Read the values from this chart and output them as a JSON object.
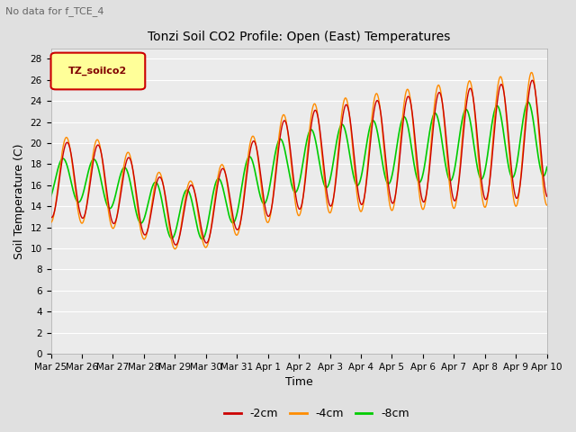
{
  "title": "Tonzi Soil CO2 Profile: Open (East) Temperatures",
  "subtitle": "No data for f_TCE_4",
  "xlabel": "Time",
  "ylabel": "Soil Temperature (C)",
  "ylim": [
    0,
    29
  ],
  "yticks": [
    0,
    2,
    4,
    6,
    8,
    10,
    12,
    14,
    16,
    18,
    20,
    22,
    24,
    26,
    28
  ],
  "legend_label": "TZ_soilco2",
  "legend_border": "#CC0000",
  "legend_bg": "#FFFF99",
  "legend_text_color": "#800000",
  "col_2cm": "#CC0000",
  "col_4cm": "#FF8C00",
  "col_8cm": "#00CC00",
  "line_labels": [
    "-2cm",
    "-4cm",
    "-8cm"
  ],
  "fig_bg": "#E0E0E0",
  "plot_bg": "#EBEBEB",
  "grid_color": "#FFFFFF"
}
